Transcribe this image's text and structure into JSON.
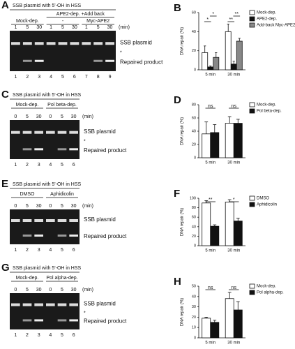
{
  "gels": [
    {
      "letter": "A",
      "title": "SSB plasmid with 5'-OH in HSS",
      "supergroup": "APE2-dep. +Add back",
      "groups": [
        "Mock-dep.",
        "-",
        "Myc-APE2"
      ],
      "times": [
        "1",
        "5",
        "30",
        "1",
        "5",
        "30",
        "1",
        "5",
        "30"
      ],
      "unit": "(min)",
      "lanes": [
        "1",
        "2",
        "3",
        "4",
        "5",
        "6",
        "7",
        "8",
        "9"
      ],
      "band_labels": [
        "SSB plasmid",
        "Repaired product"
      ],
      "star": "*"
    },
    {
      "letter": "C",
      "title": "SSB plasmid with 5'-OH in HSS",
      "groups": [
        "Mock-dep.",
        "Pol beta-dep."
      ],
      "times": [
        "0",
        "5",
        "30",
        "0",
        "5",
        "30"
      ],
      "unit": "(min)",
      "lanes": [
        "1",
        "2",
        "3",
        "4",
        "5",
        "6"
      ],
      "band_labels": [
        "SSB plasmid",
        "Repaired product"
      ],
      "star": "*"
    },
    {
      "letter": "E",
      "title": "SSB plasmid with 5'-OH in HSS",
      "groups": [
        "DMSO",
        "Aphidicolin"
      ],
      "times": [
        "0",
        "5",
        "30",
        "0",
        "5",
        "30"
      ],
      "unit": "(min)",
      "lanes": [
        "1",
        "2",
        "3",
        "4",
        "5",
        "6"
      ],
      "band_labels": [
        "SSB plasmid",
        "Repaired product"
      ]
    },
    {
      "letter": "G",
      "title": "SSB plasmid with 5'-OH in HSS",
      "groups": [
        "Mock-dep.",
        "Pol alpha-dep."
      ],
      "times": [
        "0",
        "5",
        "30",
        "0",
        "5",
        "30"
      ],
      "unit": "(min)",
      "lanes": [
        "1",
        "2",
        "3",
        "4",
        "5",
        "6"
      ],
      "band_labels": [
        "SSB plasmid",
        "Repaired product"
      ],
      "star": "*"
    }
  ],
  "chart_data": [
    {
      "type": "bar",
      "letter": "B",
      "ylabel": "DNA repair (%)",
      "categories": [
        "5 min",
        "30 min"
      ],
      "ylim": [
        0,
        60
      ],
      "yticks": [
        0,
        20,
        40,
        60
      ],
      "series": [
        {
          "name": "Mock-dep.",
          "color": "#ffffff",
          "values": [
            18,
            40
          ],
          "errors": [
            7,
            8
          ]
        },
        {
          "name": "APE2-dep.",
          "color": "#111111",
          "values": [
            3,
            6
          ],
          "errors": [
            1,
            3
          ]
        },
        {
          "name": "Add-back Myc-APE2",
          "color": "#888888",
          "values": [
            13,
            30
          ],
          "errors": [
            5,
            3
          ]
        }
      ],
      "annotations": [
        "*",
        "*",
        "**",
        "**"
      ]
    },
    {
      "type": "bar",
      "letter": "D",
      "ylabel": "DNA repair (%)",
      "categories": [
        "5 min",
        "30 min"
      ],
      "ylim": [
        0,
        80
      ],
      "yticks": [
        0,
        20,
        40,
        60,
        80
      ],
      "series": [
        {
          "name": "Mock-dep.",
          "color": "#ffffff",
          "values": [
            36,
            52
          ],
          "errors": [
            18,
            10
          ]
        },
        {
          "name": "Pol beta-dep.",
          "color": "#111111",
          "values": [
            38,
            52
          ],
          "errors": [
            12,
            6
          ]
        }
      ],
      "annotations": [
        "ns",
        "ns"
      ]
    },
    {
      "type": "bar",
      "letter": "F",
      "ylabel": "DNA repair (%)",
      "categories": [
        "5 min",
        "30 min"
      ],
      "ylim": [
        0,
        100
      ],
      "yticks": [
        0,
        20,
        40,
        60,
        80,
        100
      ],
      "series": [
        {
          "name": "DMSO",
          "color": "#ffffff",
          "values": [
            90,
            92
          ],
          "errors": [
            5,
            5
          ]
        },
        {
          "name": "Aphidicolin",
          "color": "#111111",
          "values": [
            41,
            52
          ],
          "errors": [
            3,
            6
          ]
        }
      ],
      "annotations": [
        "**",
        "*"
      ]
    },
    {
      "type": "bar",
      "letter": "H",
      "ylabel": "DNA repair (%)",
      "categories": [
        "5 min",
        "30 min"
      ],
      "ylim": [
        0,
        50
      ],
      "yticks": [
        0,
        10,
        20,
        30,
        40,
        50
      ],
      "series": [
        {
          "name": "Mock-dep.",
          "color": "#ffffff",
          "values": [
            19,
            38
          ],
          "errors": [
            1,
            6
          ]
        },
        {
          "name": "Pol alpha-dep.",
          "color": "#111111",
          "values": [
            15,
            27
          ],
          "errors": [
            2,
            8
          ]
        }
      ],
      "annotations": [
        "ns",
        "ns"
      ]
    }
  ]
}
